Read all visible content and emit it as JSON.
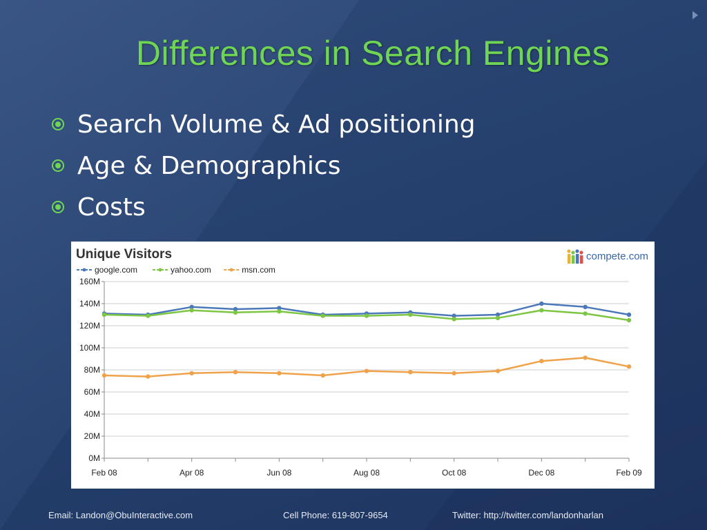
{
  "slide": {
    "title": "Differences in Search Engines",
    "bullets": [
      "Search Volume & Ad positioning",
      "Age & Demographics",
      "Costs"
    ]
  },
  "footer": {
    "email": "Email: Landon@ObuInteractive.com",
    "phone": "Cell Phone: 619-807-9654",
    "twitter": "Twitter: http://twitter.com/landonharlan"
  },
  "logo": {
    "text": "compete.com"
  },
  "colors": {
    "title": "#6fd653",
    "google": "#4a78b8",
    "yahoo": "#7cc644",
    "msn": "#f0a24a"
  },
  "chart_data": {
    "type": "line",
    "title": "Unique Visitors",
    "ylim": [
      0,
      160
    ],
    "yticks": [
      "0M",
      "20M",
      "40M",
      "60M",
      "80M",
      "100M",
      "120M",
      "140M",
      "160M"
    ],
    "xtick_labels": [
      "Feb 08",
      "Apr 08",
      "Jun 08",
      "Aug 08",
      "Oct 08",
      "Dec 08",
      "Feb 09"
    ],
    "x": [
      "Feb 08",
      "Mar 08",
      "Apr 08",
      "May 08",
      "Jun 08",
      "Jul 08",
      "Aug 08",
      "Sep 08",
      "Oct 08",
      "Nov 08",
      "Dec 08",
      "Jan 09",
      "Feb 09"
    ],
    "series": [
      {
        "name": "google.com",
        "color": "#4a78b8",
        "values": [
          131,
          130,
          137,
          135,
          136,
          130,
          131,
          132,
          129,
          130,
          140,
          137,
          130
        ]
      },
      {
        "name": "yahoo.com",
        "color": "#7cc644",
        "values": [
          130,
          129,
          134,
          132,
          133,
          129,
          129,
          130,
          126,
          127,
          134,
          131,
          125
        ]
      },
      {
        "name": "msn.com",
        "color": "#f0a24a",
        "values": [
          75,
          74,
          77,
          78,
          77,
          75,
          79,
          78,
          77,
          79,
          88,
          91,
          83
        ]
      }
    ],
    "grid": true,
    "legend": "top-left"
  }
}
